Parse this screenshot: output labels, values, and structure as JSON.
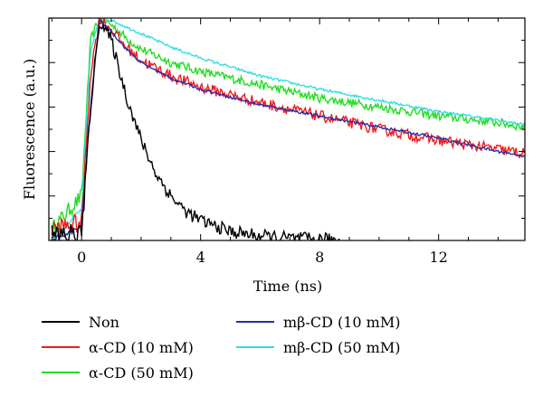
{
  "chart_data": {
    "type": "line",
    "title": "",
    "xlabel": "Time (ns)",
    "ylabel": "Fluorescence (a.u.)",
    "xlim": [
      -1.1,
      14.9
    ],
    "ylim": [
      0,
      1.0
    ],
    "x_ticks": [
      0,
      4,
      8,
      12
    ],
    "x_tick_labels": [
      "0",
      "4",
      "8",
      "12"
    ],
    "y_tick_labels_shown": false,
    "grid": false,
    "legend_position": "bottom",
    "rise_time_ns": 0.6,
    "series": [
      {
        "name": "Non",
        "color": "#000000",
        "x": [
          -1.0,
          0.0,
          0.3,
          0.6,
          1.0,
          1.5,
          2.0,
          2.5,
          3.0,
          3.5,
          4.0,
          5.0,
          6.0,
          7.0,
          8.0,
          8.7
        ],
        "y": [
          0.02,
          0.03,
          0.6,
          0.99,
          0.9,
          0.65,
          0.45,
          0.3,
          0.2,
          0.13,
          0.09,
          0.04,
          0.02,
          0.01,
          0.005,
          0.003
        ],
        "noise": 0.03
      },
      {
        "name": "α-CD (10 mM)",
        "color": "#ee1c1c",
        "x": [
          -1.0,
          0.0,
          0.3,
          0.6,
          1.0,
          1.5,
          2.0,
          3.0,
          4.0,
          6.0,
          8.0,
          10.0,
          12.0,
          14.0,
          14.9
        ],
        "y": [
          0.05,
          0.08,
          0.75,
          1.0,
          0.95,
          0.87,
          0.81,
          0.74,
          0.69,
          0.62,
          0.56,
          0.5,
          0.45,
          0.41,
          0.39
        ],
        "noise": 0.025
      },
      {
        "name": "α-CD (50 mM)",
        "color": "#22dd22",
        "x": [
          -1.0,
          0.0,
          0.3,
          0.6,
          1.0,
          1.5,
          2.0,
          3.0,
          4.0,
          6.0,
          8.0,
          10.0,
          12.0,
          14.0,
          14.9
        ],
        "y": [
          0.05,
          0.2,
          0.9,
          1.0,
          0.97,
          0.91,
          0.86,
          0.8,
          0.76,
          0.7,
          0.64,
          0.6,
          0.56,
          0.53,
          0.51
        ],
        "noise": 0.02
      },
      {
        "name": "mβ-CD (10 mM)",
        "color": "#2a2aa8",
        "x": [
          -1.0,
          0.0,
          0.3,
          0.6,
          1.0,
          1.5,
          2.0,
          3.0,
          4.0,
          6.0,
          8.0,
          10.0,
          12.0,
          14.0,
          14.9
        ],
        "y": [
          0.0,
          0.06,
          0.6,
          0.99,
          0.94,
          0.86,
          0.8,
          0.73,
          0.68,
          0.61,
          0.56,
          0.51,
          0.46,
          0.4,
          0.38
        ],
        "noise": 0.006
      },
      {
        "name": "mβ-CD (50 mM)",
        "color": "#33dede",
        "x": [
          -1.0,
          0.0,
          0.3,
          0.6,
          1.0,
          1.5,
          2.0,
          3.0,
          4.0,
          6.0,
          8.0,
          10.0,
          12.0,
          14.0,
          14.9
        ],
        "y": [
          0.0,
          0.14,
          0.85,
          1.0,
          0.99,
          0.96,
          0.93,
          0.87,
          0.82,
          0.74,
          0.68,
          0.63,
          0.58,
          0.54,
          0.52
        ],
        "noise": 0.006
      }
    ]
  }
}
